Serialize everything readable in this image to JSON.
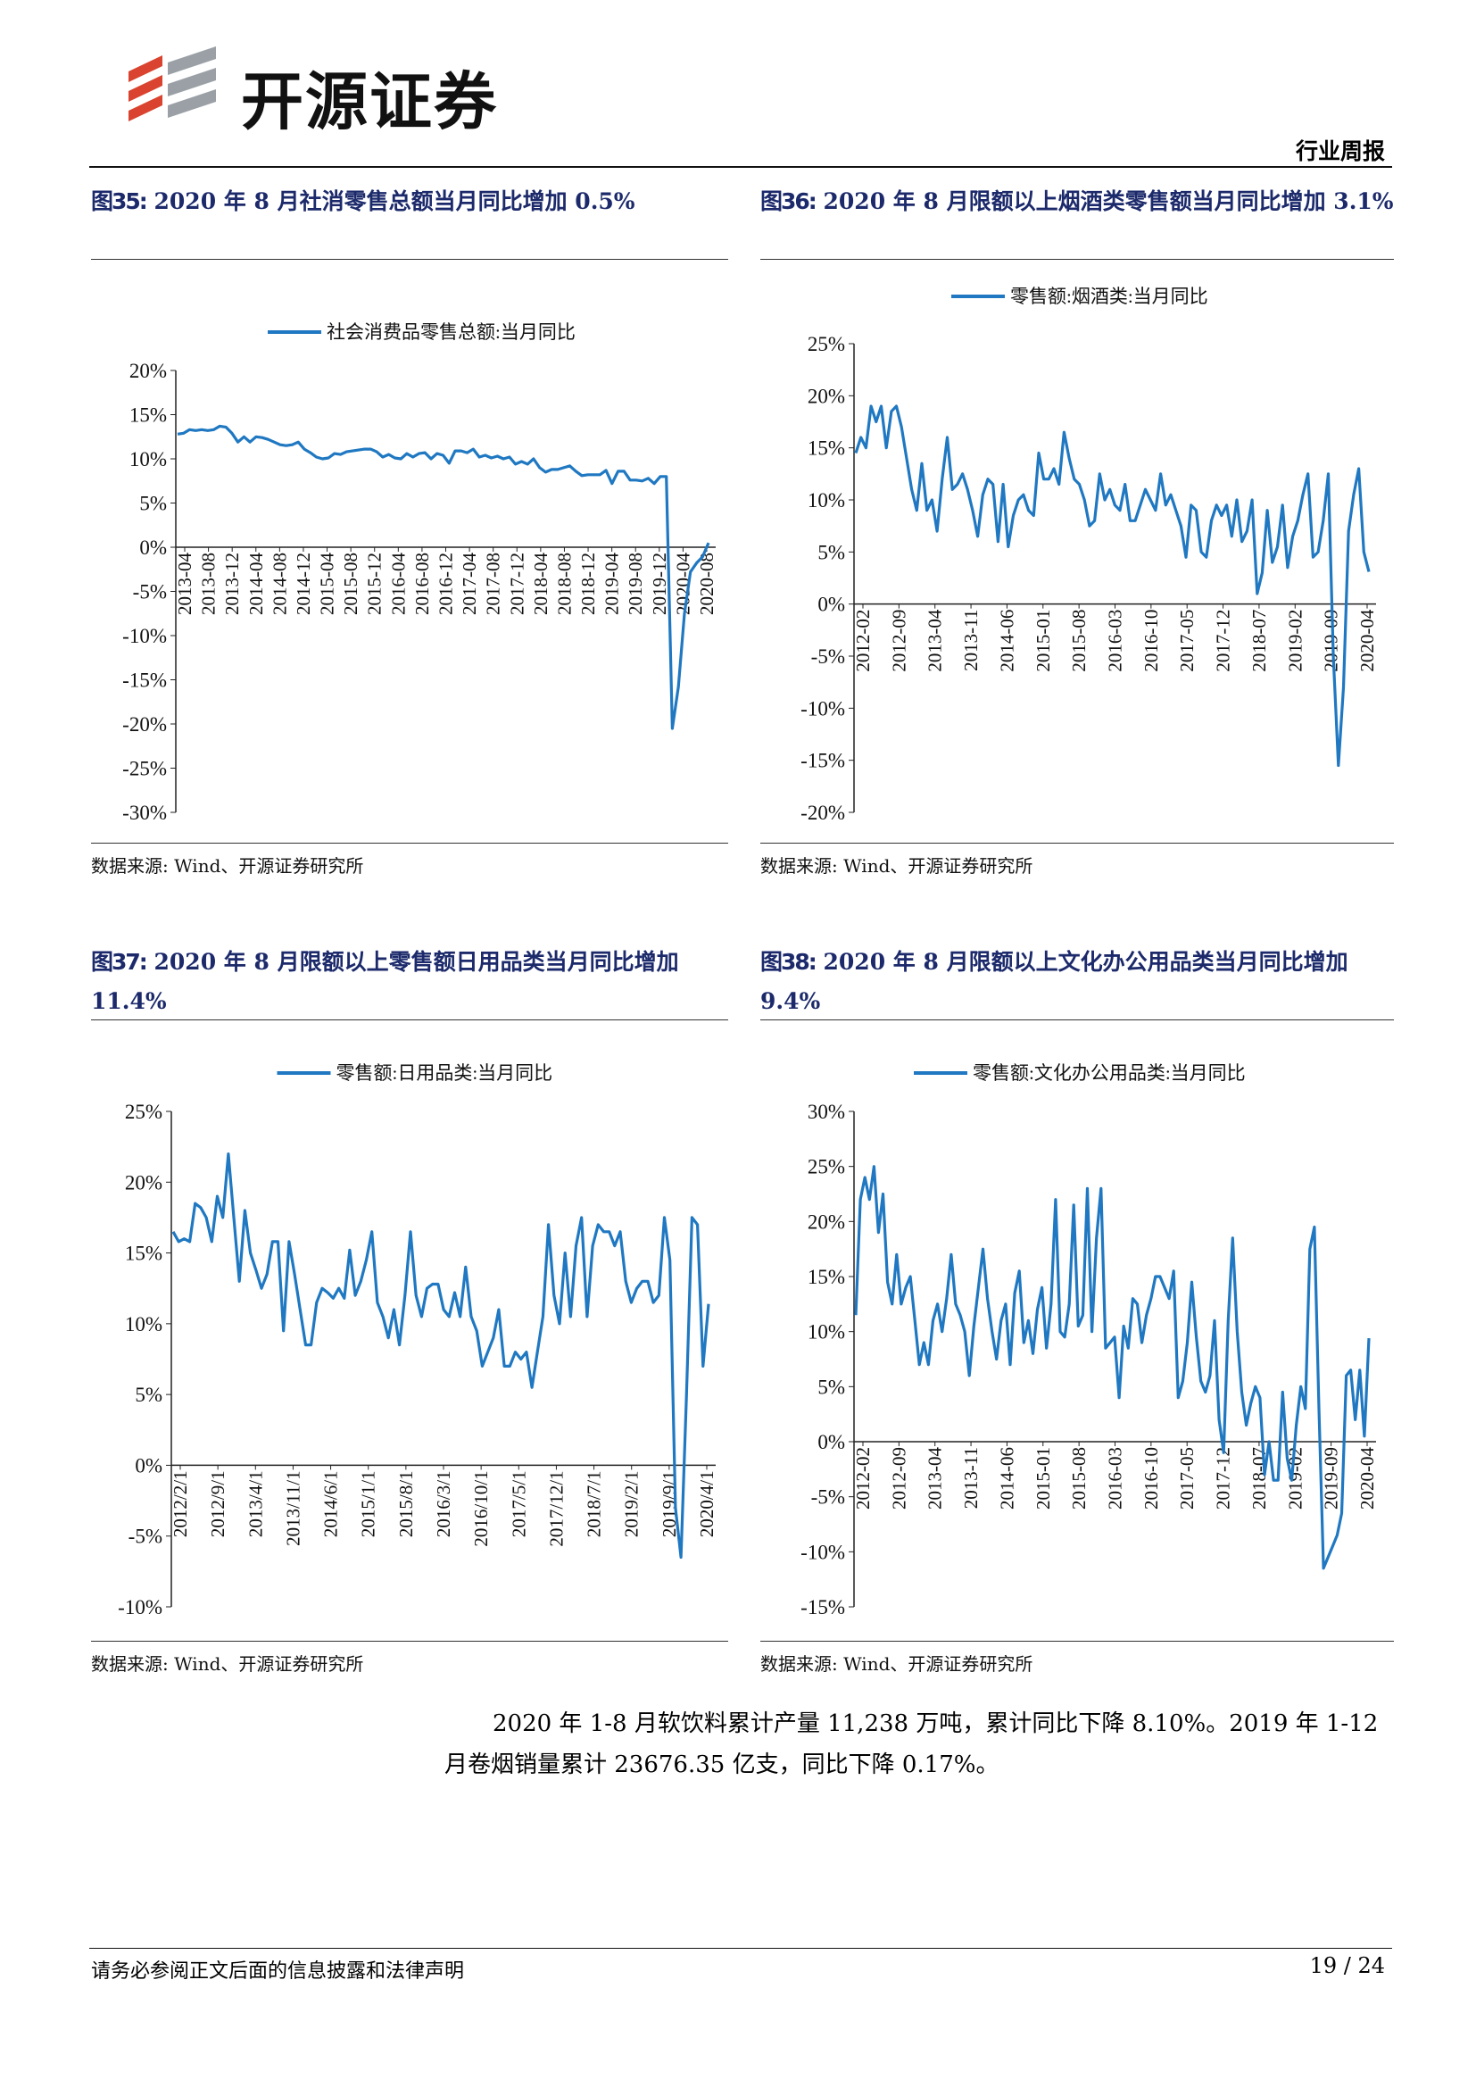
{
  "header": {
    "brand": "开源证券",
    "report_type": "行业周报"
  },
  "figures": [
    {
      "num": "图35:",
      "title": "2020 年 8 月社消零售总额当月同比增加 0.5%",
      "source": "数据来源: Wind、开源证券研究所"
    },
    {
      "num": "图36:",
      "title": "2020 年 8 月限额以上烟酒类零售额当月同比增加 3.1%",
      "source": "数据来源: Wind、开源证券研究所"
    },
    {
      "num": "图37:",
      "title": "2020 年 8 月限额以上零售额日用品类当月同比增加 11.4%",
      "source": "数据来源: Wind、开源证券研究所"
    },
    {
      "num": "图38:",
      "title": "2020 年 8 月限额以上文化办公用品类当月同比增加 9.4%",
      "source": "数据来源: Wind、开源证券研究所"
    }
  ],
  "chart_data": [
    {
      "type": "line",
      "legend": "社会消费品零售总额:当月同比",
      "yticks": [
        "20%",
        "15%",
        "10%",
        "5%",
        "0%",
        "-5%",
        "-10%",
        "-15%",
        "-20%",
        "-25%",
        "-30%"
      ],
      "ylim": [
        -30,
        20
      ],
      "xticks": [
        "2013-04",
        "2013-08",
        "2013-12",
        "2014-04",
        "2014-08",
        "2014-12",
        "2015-04",
        "2015-08",
        "2015-12",
        "2016-04",
        "2016-08",
        "2016-12",
        "2017-04",
        "2017-08",
        "2017-12",
        "2018-04",
        "2018-08",
        "2018-12",
        "2019-04",
        "2019-08",
        "2019-12",
        "2020-04",
        "2020-08"
      ],
      "series": [
        {
          "values": [
            12.8,
            12.9,
            13.3,
            13.2,
            13.3,
            13.2,
            13.3,
            13.7,
            13.6,
            12.9,
            11.9,
            12.5,
            11.9,
            12.5,
            12.4,
            12.2,
            11.9,
            11.6,
            11.5,
            11.6,
            11.9,
            11.1,
            10.7,
            10.2,
            10.0,
            10.1,
            10.6,
            10.5,
            10.8,
            10.9,
            11.0,
            11.1,
            11.1,
            10.8,
            10.2,
            10.5,
            10.1,
            10.0,
            10.6,
            10.2,
            10.6,
            10.7,
            10.0,
            10.6,
            10.4,
            9.5,
            10.9,
            10.9,
            10.7,
            11.1,
            10.2,
            10.4,
            10.1,
            10.3,
            10.0,
            10.2,
            9.4,
            9.7,
            9.4,
            10.0,
            9.0,
            8.5,
            8.8,
            8.8,
            9.0,
            9.2,
            8.6,
            8.1,
            8.2,
            8.2,
            8.2,
            8.7,
            7.2,
            8.6,
            8.6,
            7.6,
            7.6,
            7.5,
            7.8,
            7.2,
            8.0,
            8.0,
            -20.5,
            -15.8,
            -7.5,
            -2.8,
            -1.8,
            -1.1,
            0.5
          ]
        }
      ]
    },
    {
      "type": "line",
      "legend": "零售额:烟酒类:当月同比",
      "yticks": [
        "25%",
        "20%",
        "15%",
        "10%",
        "5%",
        "0%",
        "-5%",
        "-10%",
        "-15%",
        "-20%"
      ],
      "ylim": [
        -20,
        25
      ],
      "xticks": [
        "2012-02",
        "2012-09",
        "2013-04",
        "2013-11",
        "2014-06",
        "2015-01",
        "2015-08",
        "2016-03",
        "2016-10",
        "2017-05",
        "2017-12",
        "2018-07",
        "2019-02",
        "2019-09",
        "2020-04"
      ],
      "series": [
        {
          "values": [
            14.5,
            16,
            15,
            19,
            17.5,
            19,
            15,
            18.5,
            19,
            17,
            14,
            11,
            9,
            13.5,
            9,
            10,
            7,
            12,
            16,
            11,
            11.5,
            12.5,
            11,
            9,
            6.5,
            10.5,
            12,
            11.5,
            6,
            11.5,
            5.5,
            8.5,
            10,
            10.5,
            9,
            8.5,
            14.5,
            12,
            12,
            13,
            11.5,
            16.5,
            14,
            12,
            11.5,
            10,
            7.5,
            8,
            12.5,
            10,
            11,
            9.5,
            9,
            11.5,
            8,
            8,
            9.5,
            11,
            10,
            9,
            12.5,
            9.5,
            10.5,
            9,
            7.5,
            4.5,
            9.5,
            9,
            5,
            4.5,
            8,
            9.5,
            8.5,
            9.5,
            6.5,
            10,
            6,
            7,
            10,
            1,
            3,
            9,
            4,
            5.5,
            9.5,
            3.5,
            6.5,
            8,
            10.5,
            12.5,
            4.5,
            5,
            8,
            12.5,
            -5,
            -15.5,
            -8,
            7,
            10.5,
            13,
            5,
            3.1
          ]
        }
      ]
    },
    {
      "type": "line",
      "legend": "零售额:日用品类:当月同比",
      "yticks": [
        "25%",
        "20%",
        "15%",
        "10%",
        "5%",
        "0%",
        "-5%",
        "-10%"
      ],
      "ylim": [
        -10,
        25
      ],
      "xticks": [
        "2012/2/1",
        "2012/9/1",
        "2013/4/1",
        "2013/11/1",
        "2014/6/1",
        "2015/1/1",
        "2015/8/1",
        "2016/3/1",
        "2016/10/1",
        "2017/5/1",
        "2017/12/1",
        "2018/7/1",
        "2019/2/1",
        "2019/9/1",
        "2020/4/1"
      ],
      "series": [
        {
          "values": [
            16.5,
            15.8,
            16,
            15.8,
            18.5,
            18.2,
            17.5,
            15.8,
            19,
            17.5,
            22,
            17.5,
            13,
            18,
            15,
            13.8,
            12.5,
            13.5,
            15.8,
            15.8,
            9.5,
            15.8,
            13.5,
            11,
            8.5,
            8.5,
            11.5,
            12.5,
            12.2,
            11.8,
            12.5,
            11.8,
            15.2,
            12,
            13,
            14.5,
            16.5,
            11.5,
            10.5,
            9,
            11,
            8.5,
            12,
            16.5,
            12,
            10.5,
            12.5,
            12.8,
            12.8,
            11,
            10.5,
            12.2,
            10.5,
            14,
            10.5,
            9.5,
            7,
            8,
            9,
            11,
            7,
            7,
            8,
            7.5,
            8,
            5.5,
            8,
            10.5,
            17,
            12,
            10,
            15,
            10.5,
            15.5,
            17.5,
            10.5,
            15.5,
            17,
            16.5,
            16.5,
            15.5,
            16.5,
            13,
            11.5,
            12.5,
            13,
            13,
            11.5,
            12,
            17.5,
            14.5,
            -3,
            -6.5,
            5,
            17.5,
            17,
            7,
            11.4
          ]
        }
      ]
    },
    {
      "type": "line",
      "legend": "零售额:文化办公用品类:当月同比",
      "yticks": [
        "30%",
        "25%",
        "20%",
        "15%",
        "10%",
        "5%",
        "0%",
        "-5%",
        "-10%",
        "-15%"
      ],
      "ylim": [
        -15,
        30
      ],
      "xticks": [
        "2012-02",
        "2012-09",
        "2013-04",
        "2013-11",
        "2014-06",
        "2015-01",
        "2015-08",
        "2016-03",
        "2016-10",
        "2017-05",
        "2017-12",
        "2018-07",
        "2019-02",
        "2019-09",
        "2020-04"
      ],
      "series": [
        {
          "values": [
            11.5,
            22,
            24,
            22,
            25,
            19,
            22.5,
            14.5,
            12.5,
            17,
            12.5,
            14,
            15,
            11,
            7,
            9,
            7,
            11,
            12.5,
            10,
            13,
            17,
            12.5,
            11.5,
            10,
            6,
            10.5,
            14,
            17.5,
            13,
            10,
            7.5,
            11,
            12.5,
            7,
            13.5,
            15.5,
            9,
            11,
            8,
            12,
            14,
            8.5,
            12.5,
            22,
            10,
            9.5,
            12.5,
            21.5,
            10.5,
            11.5,
            23,
            10,
            18.5,
            23,
            8.5,
            9,
            9.5,
            4,
            10.5,
            8.5,
            13,
            12.5,
            9,
            11.5,
            13,
            15,
            15,
            14,
            13,
            15.5,
            4,
            5.5,
            9,
            14.5,
            9.5,
            5.5,
            4.5,
            6,
            11,
            2,
            -1,
            11,
            18.5,
            10,
            4.5,
            1.5,
            3.5,
            5,
            4,
            -3,
            0,
            -3.5,
            -3.5,
            4.5,
            -1.5,
            -3.5,
            1.5,
            5,
            3,
            17.5,
            19.5,
            3,
            -11.5,
            -10.5,
            -9.5,
            -8.5,
            -6.5,
            6,
            6.5,
            2,
            6.5,
            0.5,
            9.4
          ]
        }
      ]
    }
  ],
  "body_text": {
    "line1": "2020 年 1-8 月软饮料累计产量 11,238 万吨，累计同比下降 8.10%。2019 年 1-12",
    "line2": "月卷烟销量累计 23676.35 亿支，同比下降 0.17%。"
  },
  "footer": {
    "disclaimer": "请务必参阅正文后面的信息披露和法律声明",
    "page": "19 / 24"
  },
  "colors": {
    "line": "#1f78c1",
    "title": "#1c2a6b",
    "logo_red": "#d9432f",
    "logo_gray": "#9aa0a6"
  }
}
